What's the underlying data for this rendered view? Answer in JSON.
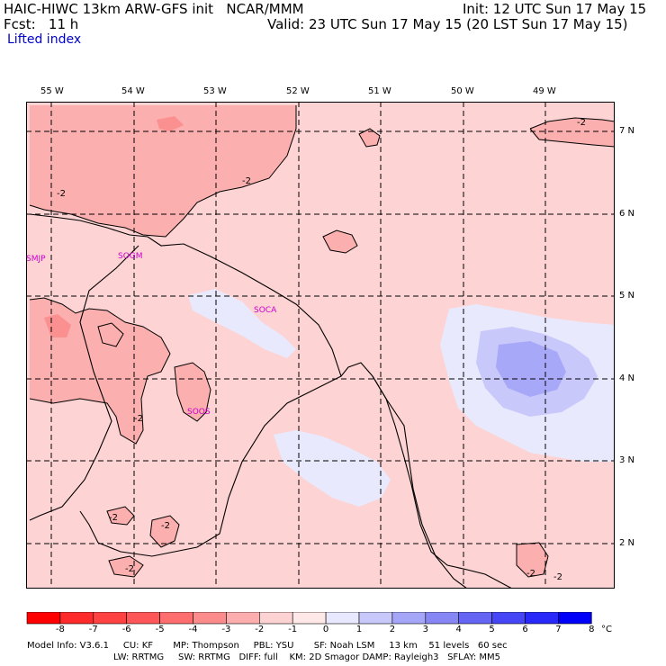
{
  "header": {
    "line1_left": "HAIC-HIWC 13km ARW-GFS init   NCAR/MMM",
    "line1_right": "Init: 12 UTC Sun 17 May 15",
    "line2_left": "Fcst:   11 h",
    "line2_right": "Valid: 23 UTC Sun 17 May 15 (20 LST Sun 17 May 15)",
    "field": "Lifted index"
  },
  "lon_labels": [
    "55 W",
    "54 W",
    "53 W",
    "52 W",
    "51 W",
    "50 W",
    "49 W"
  ],
  "lat_labels": [
    "7 N",
    "6 N",
    "5 N",
    "4 N",
    "3 N",
    "2 N"
  ],
  "stations": [
    "SMJP",
    "SOGM",
    "SOCA",
    "SOOS"
  ],
  "contour_label": "-2",
  "colorbar": {
    "labels": [
      "-8",
      "-7",
      "-6",
      "-5",
      "-4",
      "-3",
      "-2",
      "-1",
      "0",
      "1",
      "2",
      "3",
      "4",
      "5",
      "6",
      "7",
      "8"
    ],
    "unit": "°C",
    "colors": [
      "#ff0000",
      "#ff2a2a",
      "#ff4343",
      "#ff5757",
      "#ff6e6e",
      "#fc8c8c",
      "#fcaeae",
      "#fdd2d2",
      "#fee8e8",
      "#e8e8fe",
      "#c8c8fb",
      "#a6a6f8",
      "#8686f5",
      "#6565f4",
      "#4646f6",
      "#2828f8",
      "#0000fa"
    ]
  },
  "footer": {
    "line1": "Model Info: V3.6.1     CU: KF       MP: Thompson     PBL: YSU       SF: Noah LSM     13 km    51 levels   60 sec",
    "line2": "LW: RRTMG     SW: RRTMG   DIFF: full    KM: 2D Smagor DAMP: Rayleigh3   SFLAY: MM5"
  }
}
